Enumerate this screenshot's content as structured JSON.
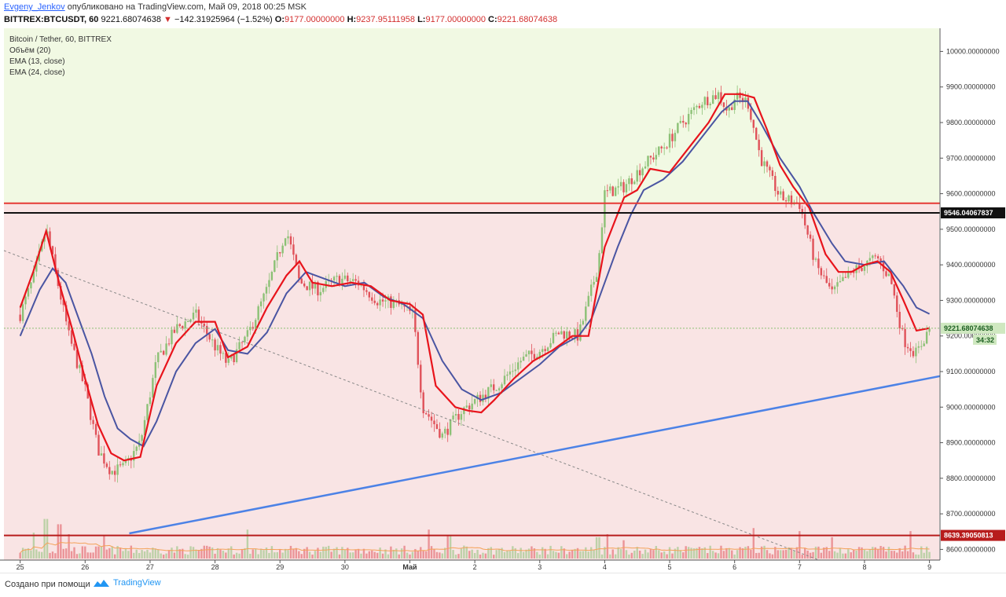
{
  "header": {
    "author": "Evgeny_Jenkov",
    "published": "опубликовано на TradingView.com, Май 09, 2018 00:25 MSK",
    "symbol": "BITTREX:BTCUSDT, 60",
    "last": "9221.68074638",
    "change": "−142.31925964 (−1.52%)",
    "open_label": "O:",
    "open": "9177.00000000",
    "high_label": "H:",
    "high": "9237.95111958",
    "low_label": "L:",
    "low": "9177.00000000",
    "close_label": "C:",
    "close": "9221.68074638"
  },
  "footer": {
    "made_with": "Создано при помощи",
    "brand": "TradingView"
  },
  "colors": {
    "upper_zone": "#f1f9e3",
    "lower_zone": "#f9e4e4",
    "candle_up": "#8cc176",
    "candle_down": "#e0525a",
    "ema_fast": "#e8141c",
    "ema_slow": "#4a55a2",
    "trendline": "#4c82e6",
    "resistance_red": "#e53935",
    "resistance_black": "#111111",
    "support_darkred": "#b71c1c"
  },
  "chart_data": {
    "type": "candlestick",
    "title": "Bitcoin / Tether, 60, BITTREX",
    "indicators": [
      "Объём (20)",
      "EMA (13, close)",
      "EMA (24, close)"
    ],
    "y_range": [
      8570,
      10065
    ],
    "y_ticks": [
      "10000.00000000",
      "9900.00000000",
      "9800.00000000",
      "9700.00000000",
      "9600.00000000",
      "9500.00000000",
      "9400.00000000",
      "9300.00000000",
      "9200.00000000",
      "9100.00000000",
      "9000.00000000",
      "8900.00000000",
      "8800.00000000",
      "8700.00000000",
      "8600.00000000"
    ],
    "x_ticks": [
      "25",
      "26",
      "27",
      "28",
      "29",
      "30",
      "Май",
      "2",
      "3",
      "4",
      "5",
      "6",
      "7",
      "8",
      "9"
    ],
    "x_range_days": [
      -0.25,
      14.15
    ],
    "price_key": [
      [
        0,
        9260
      ],
      [
        0.2,
        9360
      ],
      [
        0.4,
        9500
      ],
      [
        0.6,
        9330
      ],
      [
        0.75,
        9200
      ],
      [
        1.0,
        9050
      ],
      [
        1.2,
        8880
      ],
      [
        1.4,
        8820
      ],
      [
        1.6,
        8830
      ],
      [
        1.85,
        8900
      ],
      [
        2.1,
        9130
      ],
      [
        2.4,
        9220
      ],
      [
        2.7,
        9260
      ],
      [
        3.0,
        9170
      ],
      [
        3.2,
        9120
      ],
      [
        3.5,
        9200
      ],
      [
        3.8,
        9330
      ],
      [
        4.1,
        9500
      ],
      [
        4.3,
        9350
      ],
      [
        4.6,
        9330
      ],
      [
        4.9,
        9360
      ],
      [
        5.2,
        9350
      ],
      [
        5.5,
        9300
      ],
      [
        5.8,
        9290
      ],
      [
        6.05,
        9260
      ],
      [
        6.2,
        9000
      ],
      [
        6.5,
        8920
      ],
      [
        6.8,
        8990
      ],
      [
        7.1,
        9030
      ],
      [
        7.4,
        9070
      ],
      [
        7.7,
        9130
      ],
      [
        8.0,
        9160
      ],
      [
        8.3,
        9210
      ],
      [
        8.6,
        9200
      ],
      [
        8.9,
        9400
      ],
      [
        9.0,
        9600
      ],
      [
        9.3,
        9620
      ],
      [
        9.6,
        9680
      ],
      [
        9.9,
        9730
      ],
      [
        10.2,
        9800
      ],
      [
        10.5,
        9860
      ],
      [
        10.75,
        9880
      ],
      [
        10.9,
        9830
      ],
      [
        11.0,
        9870
      ],
      [
        11.2,
        9860
      ],
      [
        11.4,
        9700
      ],
      [
        11.7,
        9590
      ],
      [
        12.0,
        9570
      ],
      [
        12.25,
        9400
      ],
      [
        12.5,
        9320
      ],
      [
        12.8,
        9380
      ],
      [
        13.0,
        9400
      ],
      [
        13.2,
        9420
      ],
      [
        13.4,
        9360
      ],
      [
        13.6,
        9190
      ],
      [
        13.8,
        9150
      ],
      [
        14.0,
        9222
      ]
    ],
    "ema13_key": [
      [
        0,
        9280
      ],
      [
        0.2,
        9380
      ],
      [
        0.4,
        9495
      ],
      [
        0.6,
        9350
      ],
      [
        0.8,
        9220
      ],
      [
        1.0,
        9080
      ],
      [
        1.2,
        8950
      ],
      [
        1.4,
        8870
      ],
      [
        1.6,
        8850
      ],
      [
        1.85,
        8860
      ],
      [
        2.1,
        9060
      ],
      [
        2.4,
        9180
      ],
      [
        2.7,
        9240
      ],
      [
        3.0,
        9240
      ],
      [
        3.2,
        9140
      ],
      [
        3.5,
        9170
      ],
      [
        3.8,
        9280
      ],
      [
        4.1,
        9370
      ],
      [
        4.3,
        9410
      ],
      [
        4.5,
        9350
      ],
      [
        4.8,
        9340
      ],
      [
        5.1,
        9350
      ],
      [
        5.4,
        9340
      ],
      [
        5.7,
        9300
      ],
      [
        6.0,
        9290
      ],
      [
        6.2,
        9260
      ],
      [
        6.4,
        9060
      ],
      [
        6.7,
        9000
      ],
      [
        6.9,
        8990
      ],
      [
        7.1,
        8985
      ],
      [
        7.3,
        9020
      ],
      [
        7.6,
        9080
      ],
      [
        7.9,
        9130
      ],
      [
        8.2,
        9160
      ],
      [
        8.5,
        9200
      ],
      [
        8.75,
        9200
      ],
      [
        9.0,
        9450
      ],
      [
        9.3,
        9590
      ],
      [
        9.5,
        9610
      ],
      [
        9.7,
        9670
      ],
      [
        10.0,
        9660
      ],
      [
        10.3,
        9730
      ],
      [
        10.6,
        9800
      ],
      [
        10.85,
        9880
      ],
      [
        11.1,
        9880
      ],
      [
        11.3,
        9870
      ],
      [
        11.5,
        9780
      ],
      [
        11.7,
        9680
      ],
      [
        11.9,
        9620
      ],
      [
        12.15,
        9560
      ],
      [
        12.4,
        9430
      ],
      [
        12.6,
        9380
      ],
      [
        12.8,
        9380
      ],
      [
        13.0,
        9400
      ],
      [
        13.2,
        9410
      ],
      [
        13.4,
        9380
      ],
      [
        13.6,
        9300
      ],
      [
        13.8,
        9215
      ],
      [
        14.0,
        9222
      ]
    ],
    "ema24_key": [
      [
        0,
        9200
      ],
      [
        0.3,
        9330
      ],
      [
        0.5,
        9390
      ],
      [
        0.7,
        9350
      ],
      [
        0.9,
        9250
      ],
      [
        1.1,
        9150
      ],
      [
        1.3,
        9030
      ],
      [
        1.5,
        8940
      ],
      [
        1.7,
        8910
      ],
      [
        1.9,
        8890
      ],
      [
        2.1,
        8960
      ],
      [
        2.4,
        9100
      ],
      [
        2.7,
        9180
      ],
      [
        3.0,
        9220
      ],
      [
        3.2,
        9160
      ],
      [
        3.5,
        9150
      ],
      [
        3.8,
        9210
      ],
      [
        4.1,
        9320
      ],
      [
        4.4,
        9380
      ],
      [
        4.7,
        9360
      ],
      [
        5.0,
        9340
      ],
      [
        5.3,
        9350
      ],
      [
        5.6,
        9310
      ],
      [
        5.9,
        9290
      ],
      [
        6.2,
        9250
      ],
      [
        6.5,
        9130
      ],
      [
        6.8,
        9050
      ],
      [
        7.1,
        9020
      ],
      [
        7.4,
        9040
      ],
      [
        7.7,
        9080
      ],
      [
        8.0,
        9120
      ],
      [
        8.3,
        9170
      ],
      [
        8.6,
        9200
      ],
      [
        8.8,
        9250
      ],
      [
        9.0,
        9350
      ],
      [
        9.2,
        9450
      ],
      [
        9.4,
        9540
      ],
      [
        9.6,
        9610
      ],
      [
        9.9,
        9640
      ],
      [
        10.2,
        9690
      ],
      [
        10.5,
        9760
      ],
      [
        10.8,
        9830
      ],
      [
        11.0,
        9860
      ],
      [
        11.2,
        9860
      ],
      [
        11.4,
        9800
      ],
      [
        11.7,
        9700
      ],
      [
        12.0,
        9620
      ],
      [
        12.2,
        9550
      ],
      [
        12.5,
        9460
      ],
      [
        12.7,
        9410
      ],
      [
        13.0,
        9400
      ],
      [
        13.3,
        9410
      ],
      [
        13.6,
        9340
      ],
      [
        13.8,
        9280
      ],
      [
        14.0,
        9262
      ]
    ],
    "levels": {
      "resistance_red": 9573,
      "resistance_black": 9546.04067837,
      "support_darkred": 8639.39050813,
      "last_price": 9221.68074638
    },
    "price_tags": [
      "9546.04067837",
      "9221.68074638",
      "8639.39050813"
    ],
    "countdown": "34:32",
    "trendline": {
      "from": [
        1.68,
        8645
      ],
      "to": [
        14.95,
        9115
      ]
    },
    "dashed_trend": {
      "from": [
        -0.25,
        9440
      ],
      "to": [
        12.3,
        8570
      ]
    },
    "volume_spikes": [
      [
        -0.05,
        0.42
      ],
      [
        0.2,
        0.34
      ],
      [
        0.4,
        0.52
      ],
      [
        0.6,
        0.45
      ],
      [
        0.75,
        0.32
      ],
      [
        1.3,
        0.3
      ],
      [
        3.5,
        0.38
      ],
      [
        6.3,
        0.38
      ],
      [
        6.6,
        0.3
      ],
      [
        8.9,
        0.28
      ],
      [
        9.05,
        0.32
      ],
      [
        9.3,
        0.24
      ],
      [
        11.3,
        0.4
      ],
      [
        12.0,
        0.36
      ],
      [
        12.5,
        0.28
      ],
      [
        13.7,
        0.36
      ]
    ]
  }
}
